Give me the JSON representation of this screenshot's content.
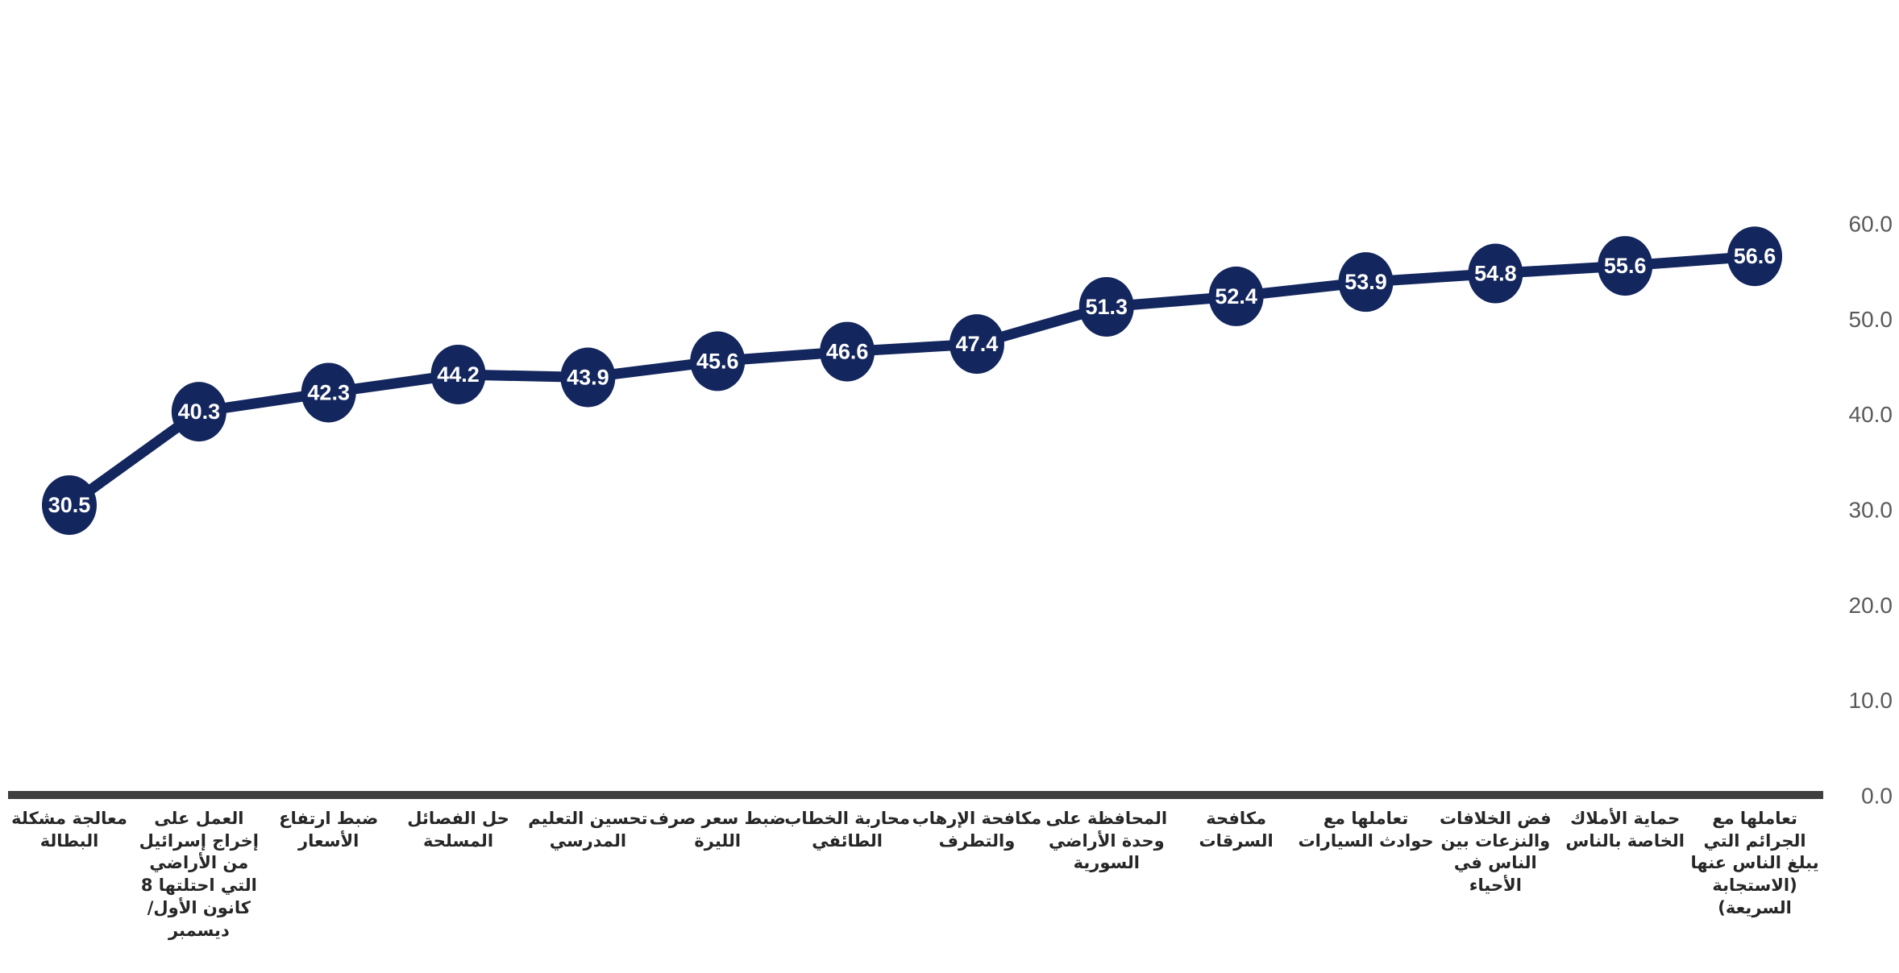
{
  "chart_data": {
    "type": "line",
    "title": "",
    "direction": "rtl",
    "grid": false,
    "legend": "none",
    "y_axis_side": "right",
    "ylim": [
      0,
      60
    ],
    "y_ticks": [
      "0.0",
      "10.0",
      "20.0",
      "30.0",
      "40.0",
      "50.0",
      "60.0"
    ],
    "categories": [
      "معالجة مشكلة البطالة",
      "العمل على إخراج إسرائيل من الأراضي التي احتلتها 8 كانون الأول/ ديسمبر",
      "ضبط ارتفاع الأسعار",
      "حل الفصائل المسلحة",
      "تحسين التعليم المدرسي",
      "ضبط سعر صرف الليرة",
      "محاربة الخطاب الطائفي",
      "مكافحة الإرهاب والتطرف",
      "المحافظة على وحدة الأراضي السورية",
      "مكافحة السرقات",
      "تعاملها مع حوادث السيارات",
      "فض الخلافات والنزعات بين الناس في الأحياء",
      "حماية الأملاك الخاصة بالناس",
      "تعاملها مع الجرائم التي يبلغ الناس عنها (الاستجابة السريعة)"
    ],
    "values": [
      30.5,
      40.3,
      42.3,
      44.2,
      43.9,
      45.6,
      46.6,
      47.4,
      51.3,
      52.4,
      53.9,
      54.8,
      55.6,
      56.6
    ],
    "value_labels": [
      "30.5",
      "40.3",
      "42.3",
      "44.2",
      "43.9",
      "45.6",
      "46.6",
      "47.4",
      "51.3",
      "52.4",
      "53.9",
      "54.8",
      "55.6",
      "56.6"
    ],
    "colors": {
      "marker": "#13265d",
      "line": "#13265d",
      "value_label": "#ffffff",
      "tick_label": "#595959",
      "category_label": "#262626",
      "axis_line": "#3f3f3f",
      "background": "#ffffff"
    }
  }
}
